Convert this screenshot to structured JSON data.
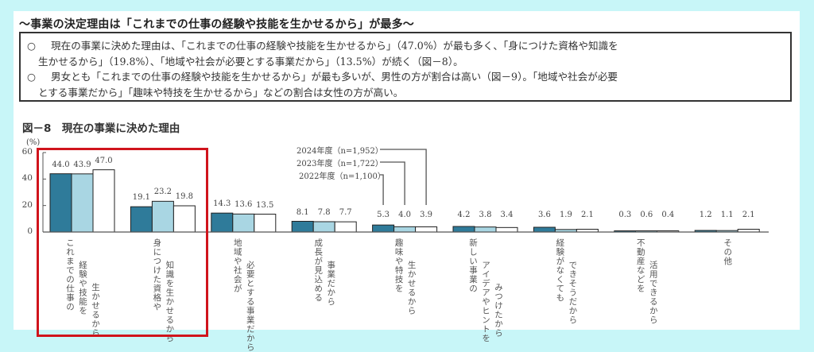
{
  "heading": "～事業の決定理由は「これまでの仕事の経験や技能を生かせるから」が最多～",
  "summary": {
    "bullet_symbol": "○",
    "lines": [
      "現在の事業に決めた理由は、「これまでの仕事の経験や技能を生かせるから」（47.0%）が最も多く、「身につけた資格や知識を",
      "生かせるから」（19.8%）、「地域や社会が必要とする事業だから」（13.5%）が続く（図－8）。",
      "男女とも「これまでの仕事の経験や技能を生かせるから」が最も多いが、男性の方が割合は高い（図－9）。「地域や社会が必要",
      "とする事業だから」「趣味や特技を生かせるから」などの割合は女性の方が高い。"
    ]
  },
  "chart_data": {
    "type": "bar",
    "title": "図－8　現在の事業に決めた理由",
    "ylabel": "(%)",
    "xlabel": "",
    "ylim": [
      0,
      60
    ],
    "yticks": [
      "0",
      "20",
      "40",
      "60"
    ],
    "grid": false,
    "legend_placement": "top-center",
    "categories": [
      [
        "これまでの仕事の",
        "経験や技能を",
        "生かせるから"
      ],
      [
        "身につけた資格や",
        "知識を生かせるから"
      ],
      [
        "地域や社会が",
        "必要とする事業だから"
      ],
      [
        "成長が見込める",
        "事業だから"
      ],
      [
        "趣味や特技を",
        "生かせるから"
      ],
      [
        "新しい事業の",
        "アイデアやヒントを",
        "みつけたから"
      ],
      [
        "経験がなくても",
        "できそうだから"
      ],
      [
        "不動産などを",
        "活用できるから"
      ],
      [
        "その他"
      ]
    ],
    "series": [
      {
        "name": "2022年度（n=1,100）",
        "color": "#2f7b9a",
        "values": [
          44.0,
          19.1,
          14.3,
          8.1,
          5.3,
          4.2,
          3.6,
          0.3,
          1.2
        ],
        "labels": [
          "44.0",
          "19.1",
          "14.3",
          "8.1",
          "5.3",
          "4.2",
          "3.6",
          "0.3",
          "1.2"
        ]
      },
      {
        "name": "2023年度（n=1,722）",
        "color": "#a9d6e3",
        "values": [
          43.9,
          23.2,
          13.6,
          7.8,
          4.0,
          3.8,
          1.9,
          0.6,
          1.1
        ],
        "labels": [
          "43.9",
          "23.2",
          "13.6",
          "7.8",
          "4.0",
          "3.8",
          "1.9",
          "0.6",
          "1.1"
        ]
      },
      {
        "name": "2024年度（n=1,952）",
        "color": "#ffffff",
        "values": [
          47.0,
          19.8,
          13.5,
          7.7,
          3.9,
          3.4,
          2.1,
          0.4,
          2.1
        ],
        "labels": [
          "47.0",
          "19.8",
          "13.5",
          "7.7",
          "3.9",
          "3.4",
          "2.1",
          "0.4",
          "2.1"
        ]
      }
    ],
    "highlight_category_index": 0,
    "highlight_color": "#d0141c"
  }
}
